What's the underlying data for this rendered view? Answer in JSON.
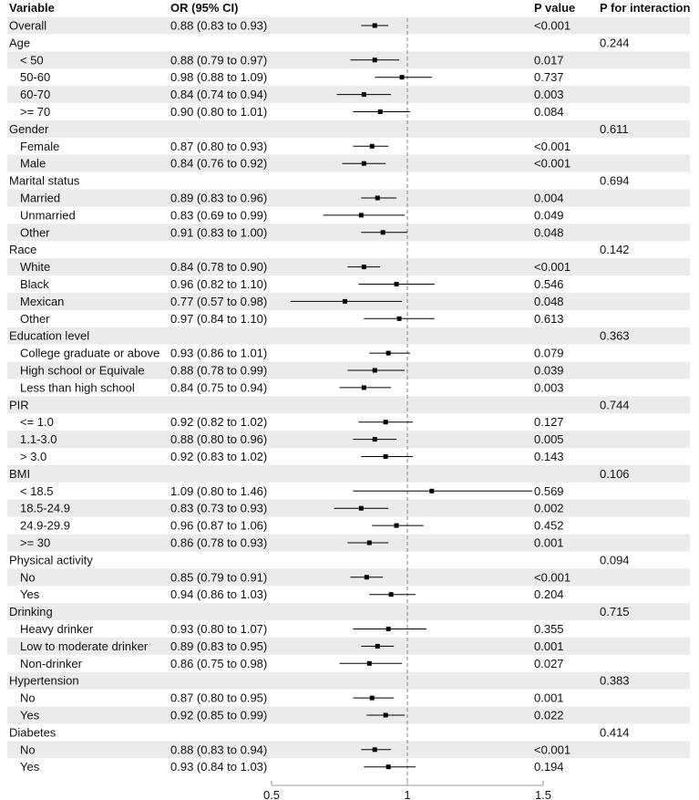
{
  "headers": {
    "variable": "Variable",
    "or_ci": "OR (95% CI)",
    "p_value": "P value",
    "p_interaction": "P for interaction"
  },
  "colors": {
    "stripe": "#ebebeb",
    "line": "#000000",
    "reference": "#808080",
    "axis": "#999999"
  },
  "chart_data": {
    "type": "forest",
    "xlim": [
      0.5,
      1.5
    ],
    "xticks": [
      "0.5",
      "1",
      "1.5"
    ],
    "reference_line": 1,
    "rows": [
      {
        "label": "Overall",
        "level": 0,
        "ci_text": "0.88 (0.83 to 0.93)",
        "or": 0.88,
        "lo": 0.83,
        "hi": 0.93,
        "p": "<0.001",
        "p_int": ""
      },
      {
        "label": "Age",
        "level": 0,
        "ci_text": "",
        "p": "",
        "p_int": "0.244"
      },
      {
        "label": "< 50",
        "level": 1,
        "ci_text": "0.88 (0.79 to 0.97)",
        "or": 0.88,
        "lo": 0.79,
        "hi": 0.97,
        "p": "0.017",
        "p_int": ""
      },
      {
        "label": "50-60",
        "level": 1,
        "ci_text": "0.98 (0.88 to 1.09)",
        "or": 0.98,
        "lo": 0.88,
        "hi": 1.09,
        "p": "0.737",
        "p_int": ""
      },
      {
        "label": "60-70",
        "level": 1,
        "ci_text": "0.84 (0.74 to 0.94)",
        "or": 0.84,
        "lo": 0.74,
        "hi": 0.94,
        "p": "0.003",
        "p_int": ""
      },
      {
        "label": ">= 70",
        "level": 1,
        "ci_text": "0.90 (0.80 to 1.01)",
        "or": 0.9,
        "lo": 0.8,
        "hi": 1.01,
        "p": "0.084",
        "p_int": ""
      },
      {
        "label": "Gender",
        "level": 0,
        "ci_text": "",
        "p": "",
        "p_int": "0.611"
      },
      {
        "label": "Female",
        "level": 1,
        "ci_text": "0.87 (0.80 to 0.93)",
        "or": 0.87,
        "lo": 0.8,
        "hi": 0.93,
        "p": "<0.001",
        "p_int": ""
      },
      {
        "label": "Male",
        "level": 1,
        "ci_text": "0.84 (0.76 to 0.92)",
        "or": 0.84,
        "lo": 0.76,
        "hi": 0.92,
        "p": "<0.001",
        "p_int": ""
      },
      {
        "label": "Marital status",
        "level": 0,
        "ci_text": "",
        "p": "",
        "p_int": "0.694"
      },
      {
        "label": "Married",
        "level": 1,
        "ci_text": "0.89 (0.83 to 0.96)",
        "or": 0.89,
        "lo": 0.83,
        "hi": 0.96,
        "p": "0.004",
        "p_int": ""
      },
      {
        "label": "Unmarried",
        "level": 1,
        "ci_text": "0.83 (0.69 to 0.99)",
        "or": 0.83,
        "lo": 0.69,
        "hi": 0.99,
        "p": "0.049",
        "p_int": ""
      },
      {
        "label": "Other",
        "level": 1,
        "ci_text": "0.91 (0.83 to 1.00)",
        "or": 0.91,
        "lo": 0.83,
        "hi": 1.0,
        "p": "0.048",
        "p_int": ""
      },
      {
        "label": "Race",
        "level": 0,
        "ci_text": "",
        "p": "",
        "p_int": "0.142"
      },
      {
        "label": "White",
        "level": 1,
        "ci_text": "0.84 (0.78 to 0.90)",
        "or": 0.84,
        "lo": 0.78,
        "hi": 0.9,
        "p": "<0.001",
        "p_int": ""
      },
      {
        "label": "Black",
        "level": 1,
        "ci_text": "0.96 (0.82 to 1.10)",
        "or": 0.96,
        "lo": 0.82,
        "hi": 1.1,
        "p": "0.546",
        "p_int": ""
      },
      {
        "label": "Mexican",
        "level": 1,
        "ci_text": "0.77 (0.57 to 0.98)",
        "or": 0.77,
        "lo": 0.57,
        "hi": 0.98,
        "p": "0.048",
        "p_int": ""
      },
      {
        "label": "Other",
        "level": 1,
        "ci_text": "0.97 (0.84 to 1.10)",
        "or": 0.97,
        "lo": 0.84,
        "hi": 1.1,
        "p": "0.613",
        "p_int": ""
      },
      {
        "label": "Education level",
        "level": 0,
        "ci_text": "",
        "p": "",
        "p_int": "0.363"
      },
      {
        "label": "College graduate or above",
        "level": 1,
        "ci_text": "0.93 (0.86 to 1.01)",
        "or": 0.93,
        "lo": 0.86,
        "hi": 1.01,
        "p": "0.079",
        "p_int": ""
      },
      {
        "label": "High school or Equivale",
        "level": 1,
        "ci_text": "0.88 (0.78 to 0.99)",
        "or": 0.88,
        "lo": 0.78,
        "hi": 0.99,
        "p": "0.039",
        "p_int": ""
      },
      {
        "label": "Less than high school",
        "level": 1,
        "ci_text": "0.84 (0.75 to 0.94)",
        "or": 0.84,
        "lo": 0.75,
        "hi": 0.94,
        "p": "0.003",
        "p_int": ""
      },
      {
        "label": "PIR",
        "level": 0,
        "ci_text": "",
        "p": "",
        "p_int": "0.744"
      },
      {
        "label": "<= 1.0",
        "level": 1,
        "ci_text": "0.92 (0.82 to 1.02)",
        "or": 0.92,
        "lo": 0.82,
        "hi": 1.02,
        "p": "0.127",
        "p_int": ""
      },
      {
        "label": "1.1-3.0",
        "level": 1,
        "ci_text": "0.88 (0.80 to 0.96)",
        "or": 0.88,
        "lo": 0.8,
        "hi": 0.96,
        "p": "0.005",
        "p_int": ""
      },
      {
        "label": "> 3.0",
        "level": 1,
        "ci_text": "0.92 (0.83 to 1.02)",
        "or": 0.92,
        "lo": 0.83,
        "hi": 1.02,
        "p": "0.143",
        "p_int": ""
      },
      {
        "label": "BMI",
        "level": 0,
        "ci_text": "",
        "p": "",
        "p_int": "0.106"
      },
      {
        "label": "< 18.5",
        "level": 1,
        "ci_text": "1.09 (0.80 to 1.46)",
        "or": 1.09,
        "lo": 0.8,
        "hi": 1.46,
        "p": "0.569",
        "p_int": ""
      },
      {
        "label": "18.5-24.9",
        "level": 1,
        "ci_text": "0.83 (0.73 to 0.93)",
        "or": 0.83,
        "lo": 0.73,
        "hi": 0.93,
        "p": "0.002",
        "p_int": ""
      },
      {
        "label": "24.9-29.9",
        "level": 1,
        "ci_text": "0.96 (0.87 to 1.06)",
        "or": 0.96,
        "lo": 0.87,
        "hi": 1.06,
        "p": "0.452",
        "p_int": ""
      },
      {
        "label": ">= 30",
        "level": 1,
        "ci_text": "0.86 (0.78 to 0.93)",
        "or": 0.86,
        "lo": 0.78,
        "hi": 0.93,
        "p": "0.001",
        "p_int": ""
      },
      {
        "label": "Physical activity",
        "level": 0,
        "ci_text": "",
        "p": "",
        "p_int": "0.094"
      },
      {
        "label": "No",
        "level": 1,
        "ci_text": "0.85 (0.79 to 0.91)",
        "or": 0.85,
        "lo": 0.79,
        "hi": 0.91,
        "p": "<0.001",
        "p_int": ""
      },
      {
        "label": "Yes",
        "level": 1,
        "ci_text": "0.94 (0.86 to 1.03)",
        "or": 0.94,
        "lo": 0.86,
        "hi": 1.03,
        "p": "0.204",
        "p_int": ""
      },
      {
        "label": "Drinking",
        "level": 0,
        "ci_text": "",
        "p": "",
        "p_int": "0.715"
      },
      {
        "label": "Heavy drinker",
        "level": 1,
        "ci_text": "0.93 (0.80 to 1.07)",
        "or": 0.93,
        "lo": 0.8,
        "hi": 1.07,
        "p": "0.355",
        "p_int": ""
      },
      {
        "label": "Low to moderate drinker",
        "level": 1,
        "ci_text": "0.89 (0.83 to 0.95)",
        "or": 0.89,
        "lo": 0.83,
        "hi": 0.95,
        "p": "0.001",
        "p_int": ""
      },
      {
        "label": "Non-drinker",
        "level": 1,
        "ci_text": "0.86 (0.75 to 0.98)",
        "or": 0.86,
        "lo": 0.75,
        "hi": 0.98,
        "p": "0.027",
        "p_int": ""
      },
      {
        "label": "Hypertension",
        "level": 0,
        "ci_text": "",
        "p": "",
        "p_int": "0.383"
      },
      {
        "label": "No",
        "level": 1,
        "ci_text": "0.87 (0.80 to 0.95)",
        "or": 0.87,
        "lo": 0.8,
        "hi": 0.95,
        "p": "0.001",
        "p_int": ""
      },
      {
        "label": "Yes",
        "level": 1,
        "ci_text": "0.92 (0.85 to 0.99)",
        "or": 0.92,
        "lo": 0.85,
        "hi": 0.99,
        "p": "0.022",
        "p_int": ""
      },
      {
        "label": "Diabetes",
        "level": 0,
        "ci_text": "",
        "p": "",
        "p_int": "0.414"
      },
      {
        "label": "No",
        "level": 1,
        "ci_text": "0.88 (0.83 to 0.94)",
        "or": 0.88,
        "lo": 0.83,
        "hi": 0.94,
        "p": "<0.001",
        "p_int": ""
      },
      {
        "label": "Yes",
        "level": 1,
        "ci_text": "0.93 (0.84 to 1.03)",
        "or": 0.93,
        "lo": 0.84,
        "hi": 1.03,
        "p": "0.194",
        "p_int": ""
      }
    ]
  }
}
